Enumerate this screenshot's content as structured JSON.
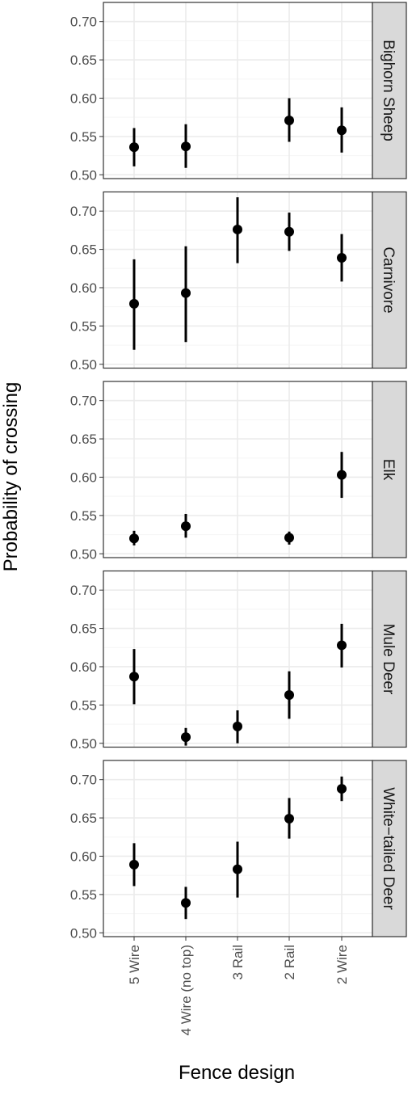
{
  "chart_data": {
    "type": "scatter",
    "xlabel": "Fence design",
    "ylabel": "Probability of crossing",
    "categories": [
      "5 Wire",
      "4 Wire (no top)",
      "3 Rail",
      "2 Rail",
      "2 Wire"
    ],
    "yticks": [
      "0.50",
      "0.55",
      "0.60",
      "0.65",
      "0.70"
    ],
    "ylim": [
      0.495,
      0.725
    ],
    "grid": true,
    "error_bars": true,
    "panels": [
      {
        "name": "Bighorn Sheep",
        "points": [
          {
            "x": "5 Wire",
            "y": 0.536,
            "lo": 0.511,
            "hi": 0.561
          },
          {
            "x": "4 Wire (no top)",
            "y": 0.537,
            "lo": 0.509,
            "hi": 0.566
          },
          {
            "x": "2 Rail",
            "y": 0.571,
            "lo": 0.543,
            "hi": 0.6
          },
          {
            "x": "2 Wire",
            "y": 0.558,
            "lo": 0.529,
            "hi": 0.588
          }
        ]
      },
      {
        "name": "Carnivore",
        "points": [
          {
            "x": "5 Wire",
            "y": 0.579,
            "lo": 0.519,
            "hi": 0.637
          },
          {
            "x": "4 Wire (no top)",
            "y": 0.593,
            "lo": 0.529,
            "hi": 0.654
          },
          {
            "x": "3 Rail",
            "y": 0.676,
            "lo": 0.632,
            "hi": 0.718
          },
          {
            "x": "2 Rail",
            "y": 0.673,
            "lo": 0.648,
            "hi": 0.698
          },
          {
            "x": "2 Wire",
            "y": 0.639,
            "lo": 0.608,
            "hi": 0.67
          }
        ]
      },
      {
        "name": "Elk",
        "points": [
          {
            "x": "5 Wire",
            "y": 0.52,
            "lo": 0.511,
            "hi": 0.53
          },
          {
            "x": "4 Wire (no top)",
            "y": 0.536,
            "lo": 0.521,
            "hi": 0.552
          },
          {
            "x": "2 Rail",
            "y": 0.521,
            "lo": 0.512,
            "hi": 0.529
          },
          {
            "x": "2 Wire",
            "y": 0.603,
            "lo": 0.573,
            "hi": 0.633
          }
        ]
      },
      {
        "name": "Mule Deer",
        "points": [
          {
            "x": "5 Wire",
            "y": 0.587,
            "lo": 0.551,
            "hi": 0.623
          },
          {
            "x": "4 Wire (no top)",
            "y": 0.508,
            "lo": 0.497,
            "hi": 0.52
          },
          {
            "x": "3 Rail",
            "y": 0.522,
            "lo": 0.5,
            "hi": 0.543
          },
          {
            "x": "2 Rail",
            "y": 0.563,
            "lo": 0.532,
            "hi": 0.594
          },
          {
            "x": "2 Wire",
            "y": 0.628,
            "lo": 0.599,
            "hi": 0.656
          }
        ]
      },
      {
        "name": "White−tailed Deer",
        "points": [
          {
            "x": "5 Wire",
            "y": 0.589,
            "lo": 0.561,
            "hi": 0.617
          },
          {
            "x": "4 Wire (no top)",
            "y": 0.539,
            "lo": 0.518,
            "hi": 0.56
          },
          {
            "x": "3 Rail",
            "y": 0.583,
            "lo": 0.546,
            "hi": 0.619
          },
          {
            "x": "2 Rail",
            "y": 0.649,
            "lo": 0.623,
            "hi": 0.676
          },
          {
            "x": "2 Wire",
            "y": 0.688,
            "lo": 0.672,
            "hi": 0.704
          }
        ]
      }
    ]
  },
  "colors": {
    "point": "#000000",
    "grid_major": "#ebebeb",
    "grid_minor": "#f5f5f5",
    "panel_border": "#333333",
    "strip_fill": "#d9d9d9",
    "tick_text": "#4d4d4d"
  }
}
